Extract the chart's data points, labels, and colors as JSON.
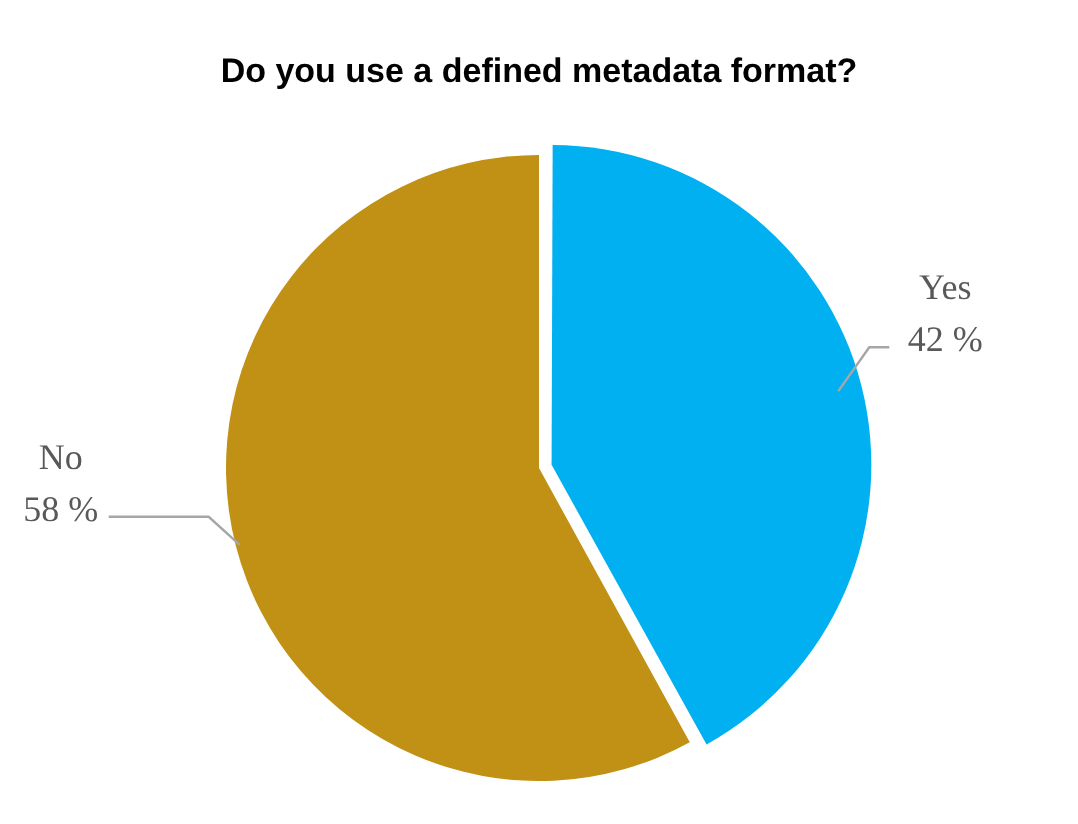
{
  "chart_data": {
    "type": "pie",
    "title": "Do you use a defined metadata format?",
    "categories": [
      "Yes",
      "No"
    ],
    "values": [
      42,
      58
    ],
    "value_labels": [
      "42 %",
      "58 %"
    ],
    "colors": [
      "#00b0f0",
      "#c09114"
    ],
    "legend": false
  }
}
